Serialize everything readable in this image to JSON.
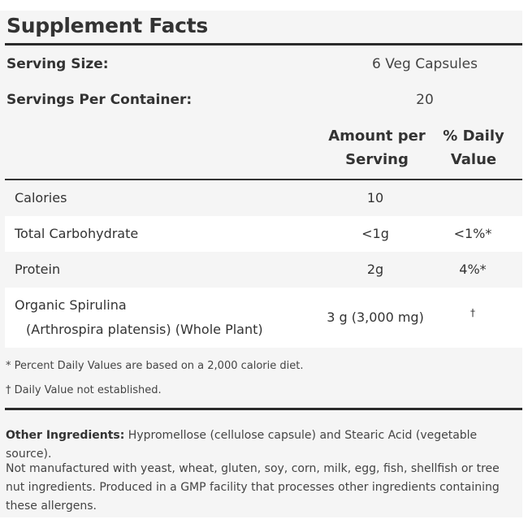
{
  "title": "Supplement Facts",
  "serving": {
    "size_label": "Serving Size:",
    "size_value": "6 Veg Capsules",
    "per_container_label": "Servings Per Container:",
    "per_container_value": "20"
  },
  "columns": {
    "amount_line1": "Amount per",
    "amount_line2": "Serving",
    "dv_line1": "% Daily",
    "dv_line2": "Value"
  },
  "rows": [
    {
      "name": "Calories",
      "amount": "10",
      "dv": ""
    },
    {
      "name": "Total Carbohydrate",
      "amount": "<1g",
      "dv": "<1%*"
    },
    {
      "name": "Protein",
      "amount": "2g",
      "dv": "4%*"
    },
    {
      "name": "Organic Spirulina",
      "sub": "(Arthrospira platensis) (Whole Plant)",
      "amount": "3 g (3,000 mg)",
      "dv": "†"
    }
  ],
  "footnotes": [
    "* Percent Daily Values are based on a 2,000 calorie diet.",
    "† Daily Value not established."
  ],
  "other_ingredients": {
    "label": "Other Ingredients:",
    "text": "Hypromellose (cellulose capsule) and Stearic Acid (vegetable source)."
  },
  "allergen_note": "Not manufactured with yeast, wheat, gluten, soy, corn, milk, egg, fish, shellfish or tree nut ingredients. Produced in a GMP facility that processes other ingredients containing these allergens."
}
